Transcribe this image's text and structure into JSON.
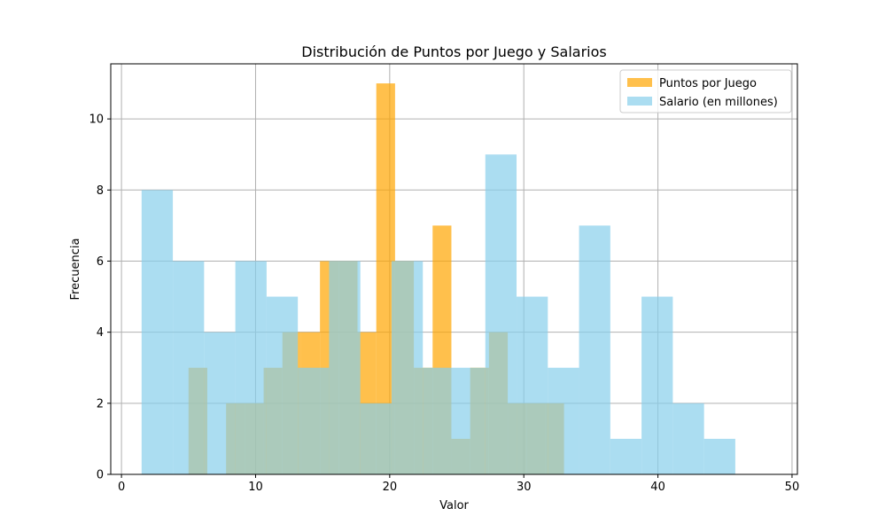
{
  "chart_data": {
    "type": "bar",
    "title": "Distribución de Puntos por Juego y Salarios",
    "xlabel": "Valor",
    "ylabel": "Frecuencia",
    "xlim": [
      -0.8,
      50.4
    ],
    "ylim": [
      0,
      11.55
    ],
    "xticks": [
      0,
      10,
      20,
      30,
      40,
      50
    ],
    "yticks": [
      0,
      2,
      4,
      6,
      8,
      10
    ],
    "grid": true,
    "legend_position": "top-right",
    "series": [
      {
        "name": "Puntos por Juego",
        "color": "#ffa500",
        "opacity": 0.7,
        "bin_start": 5.0,
        "bin_width": 1.4,
        "counts": [
          3,
          0,
          2,
          2,
          3,
          4,
          4,
          6,
          6,
          4,
          11,
          6,
          3,
          7,
          1,
          3,
          4,
          2,
          2,
          2
        ]
      },
      {
        "name": "Salario (en millones)",
        "color": "#87ceeb",
        "opacity": 0.7,
        "bin_start": 1.5,
        "bin_width": 2.33,
        "counts": [
          8,
          6,
          4,
          6,
          5,
          3,
          6,
          2,
          6,
          3,
          3,
          9,
          5,
          3,
          7,
          1,
          5,
          2,
          1,
          0
        ]
      }
    ]
  }
}
